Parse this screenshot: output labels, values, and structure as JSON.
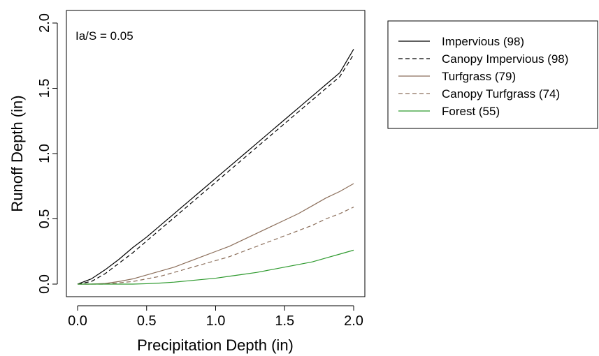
{
  "chart_data": {
    "type": "line",
    "title": "",
    "xlabel": "Precipitation Depth (in)",
    "ylabel": "Runoff Depth (in)",
    "xlim": [
      0.0,
      2.0
    ],
    "ylim": [
      0.0,
      2.0
    ],
    "x_ticks": [
      "0.0",
      "0.5",
      "1.0",
      "1.5",
      "2.0"
    ],
    "y_ticks": [
      "0.0",
      "0.5",
      "1.0",
      "1.5",
      "2.0"
    ],
    "annotation": "Ia/S = 0.05",
    "legend_position": "outside-top-right",
    "x": [
      0.0,
      0.1,
      0.2,
      0.3,
      0.4,
      0.5,
      0.6,
      0.7,
      0.8,
      0.9,
      1.0,
      1.1,
      1.2,
      1.3,
      1.4,
      1.5,
      1.6,
      1.7,
      1.8,
      1.9,
      2.0
    ],
    "series": [
      {
        "name": "Impervious (98)",
        "color": "#000000",
        "dash": "solid",
        "values": [
          0.0,
          0.04,
          0.11,
          0.19,
          0.28,
          0.36,
          0.45,
          0.54,
          0.63,
          0.72,
          0.81,
          0.9,
          0.99,
          1.08,
          1.17,
          1.26,
          1.35,
          1.44,
          1.53,
          1.62,
          1.8
        ]
      },
      {
        "name": "Canopy Impervious (98)",
        "color": "#000000",
        "dash": "dashed",
        "values": [
          0.0,
          0.02,
          0.08,
          0.16,
          0.24,
          0.33,
          0.42,
          0.51,
          0.6,
          0.69,
          0.78,
          0.87,
          0.96,
          1.05,
          1.14,
          1.23,
          1.32,
          1.41,
          1.5,
          1.59,
          1.76
        ]
      },
      {
        "name": "Turfgrass (79)",
        "color": "#8b6e5a",
        "dash": "solid",
        "values": [
          0.0,
          0.0,
          0.005,
          0.02,
          0.04,
          0.07,
          0.1,
          0.13,
          0.17,
          0.21,
          0.25,
          0.29,
          0.34,
          0.39,
          0.44,
          0.49,
          0.54,
          0.6,
          0.66,
          0.71,
          0.77
        ]
      },
      {
        "name": "Canopy Turfgrass (74)",
        "color": "#8b6e5a",
        "dash": "dashed",
        "values": [
          0.0,
          0.0,
          0.0,
          0.01,
          0.02,
          0.04,
          0.06,
          0.09,
          0.12,
          0.15,
          0.18,
          0.21,
          0.25,
          0.29,
          0.33,
          0.37,
          0.41,
          0.45,
          0.5,
          0.54,
          0.59
        ]
      },
      {
        "name": "Forest (55)",
        "color": "#2e9a2e",
        "dash": "solid",
        "values": [
          0.0,
          0.0,
          0.0,
          0.0,
          0.0,
          0.003,
          0.008,
          0.015,
          0.025,
          0.035,
          0.045,
          0.06,
          0.075,
          0.09,
          0.11,
          0.13,
          0.15,
          0.17,
          0.2,
          0.23,
          0.26
        ]
      }
    ]
  }
}
